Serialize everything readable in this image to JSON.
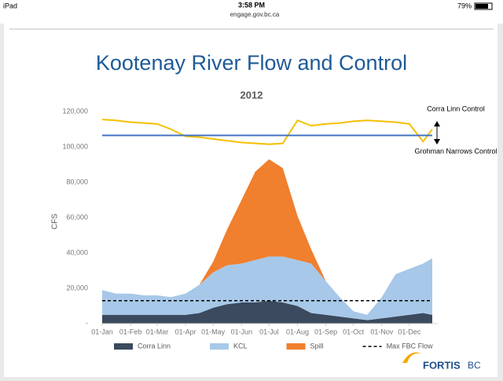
{
  "status_bar": {
    "device": "iPad",
    "time": "3:58 PM",
    "url": "engage.gov.bc.ca",
    "battery": "79%"
  },
  "slide": {
    "title": "Kootenay River Flow and Control",
    "logo": {
      "name": "FORTIS",
      "suffix": "BC"
    }
  },
  "chart_data": {
    "type": "area",
    "title": "2012",
    "y_label": "CFS",
    "x": [
      0,
      15,
      31,
      46,
      60,
      75,
      91,
      106,
      121,
      136,
      152,
      167,
      182,
      197,
      213,
      228,
      244,
      259,
      274,
      289,
      305,
      320,
      335,
      350,
      360
    ],
    "xlim": [
      0,
      366
    ],
    "xticks": [
      {
        "value": 0,
        "label": "01-Jan"
      },
      {
        "value": 31,
        "label": "01-Feb"
      },
      {
        "value": 60,
        "label": "01-Mar"
      },
      {
        "value": 91,
        "label": "01-Apr"
      },
      {
        "value": 121,
        "label": "01-May"
      },
      {
        "value": 152,
        "label": "01-Jun"
      },
      {
        "value": 182,
        "label": "01-Jul"
      },
      {
        "value": 213,
        "label": "01-Aug"
      },
      {
        "value": 244,
        "label": "01-Sep"
      },
      {
        "value": 274,
        "label": "01-Oct"
      },
      {
        "value": 305,
        "label": "01-Nov"
      },
      {
        "value": 335,
        "label": "01-Dec"
      }
    ],
    "ylim": [
      0,
      120000
    ],
    "yticks": [
      {
        "value": 0,
        "label": "-"
      },
      {
        "value": 20000,
        "label": "20,000"
      },
      {
        "value": 40000,
        "label": "40,000"
      },
      {
        "value": 60000,
        "label": "60,000"
      },
      {
        "value": 80000,
        "label": "80,000"
      },
      {
        "value": 100000,
        "label": "100,000"
      },
      {
        "value": 120000,
        "label": "120,000"
      }
    ],
    "series": [
      {
        "name": "Corra Linn",
        "kind": "area",
        "color": "#3b4a5e",
        "values": [
          5000,
          5000,
          5000,
          5000,
          5000,
          5000,
          5000,
          6000,
          9000,
          11000,
          12000,
          12000,
          13000,
          12000,
          10000,
          6000,
          5000,
          4000,
          3000,
          2000,
          3000,
          4000,
          5000,
          6000,
          5000
        ]
      },
      {
        "name": "KCL",
        "kind": "area",
        "color": "#a7c8e8",
        "values": [
          14000,
          12000,
          12000,
          11000,
          11000,
          10000,
          12000,
          16000,
          20000,
          22000,
          22000,
          24000,
          25000,
          26000,
          26000,
          28000,
          19000,
          11000,
          4000,
          3000,
          12000,
          24000,
          26000,
          28000,
          32000
        ]
      },
      {
        "name": "Spill",
        "kind": "area",
        "color": "#f07f2e",
        "values": [
          0,
          0,
          0,
          0,
          0,
          0,
          0,
          0,
          6000,
          20000,
          36000,
          50000,
          55000,
          50000,
          25000,
          8000,
          0,
          0,
          0,
          0,
          0,
          0,
          0,
          0,
          0
        ]
      },
      {
        "name": "Max FBC Flow",
        "kind": "line",
        "dash": true,
        "color": "#000000",
        "values": [
          13000,
          13000,
          13000,
          13000,
          13000,
          13000,
          13000,
          13000,
          13000,
          13000,
          13000,
          13000,
          13000,
          13000,
          13000,
          13000,
          13000,
          13000,
          13000,
          13000,
          13000,
          13000,
          13000,
          13000,
          13000
        ]
      },
      {
        "kind": "line",
        "color": "#f5c000",
        "values": [
          115500,
          115000,
          114000,
          113500,
          113000,
          110000,
          106000,
          105500,
          104500,
          103500,
          102500,
          102000,
          101500,
          102000,
          115000,
          112000,
          113000,
          113500,
          114500,
          115000,
          114500,
          114000,
          113000,
          103000,
          110000
        ]
      },
      {
        "kind": "line",
        "color": "#4472c4",
        "values": [
          106500,
          106500,
          106500,
          106500,
          106500,
          106500,
          106500,
          106500,
          106500,
          106500,
          106500,
          106500,
          106500,
          106500,
          106500,
          106500,
          106500,
          106500,
          106500,
          106500,
          106500,
          106500,
          106500,
          106500,
          106500
        ]
      }
    ],
    "annotations": [
      "Corra Linn Control",
      "Grohman Narrows Control"
    ]
  }
}
